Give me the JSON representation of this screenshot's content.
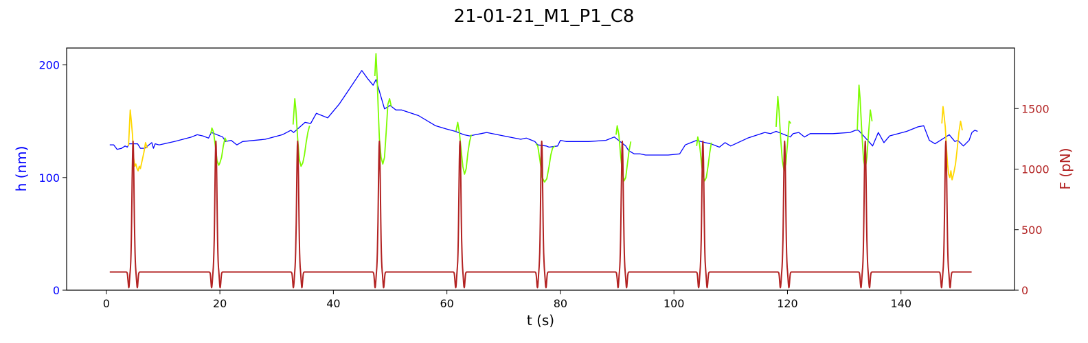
{
  "chart_data": {
    "type": "line",
    "title": "21-01-21_M1_P1_C8",
    "xlabel": "t (s)",
    "ylabel_left": "h (nm)",
    "ylabel_right": "F (pN)",
    "xlim": [
      -7,
      160
    ],
    "ylim_left": [
      0,
      215
    ],
    "ylim_right": [
      0,
      2000
    ],
    "x_ticks": [
      0,
      20,
      40,
      60,
      80,
      100,
      120,
      140
    ],
    "y_left_ticks": [
      0,
      100,
      200
    ],
    "y_right_ticks": [
      0,
      500,
      1000,
      1500
    ],
    "grid": false,
    "colors": {
      "h": "#0000ff",
      "compression_green": "#7cfc00",
      "compression_gold": "#ffd700",
      "force": "#b22222",
      "left_axis": "#0000ff",
      "right_axis": "#b22222"
    },
    "series": [
      {
        "axis": "left",
        "color": "#0000ff",
        "points": [
          [
            0.6,
            129
          ],
          [
            1.3,
            129
          ],
          [
            1.9,
            125
          ],
          [
            2.7,
            126
          ],
          [
            3.3,
            128
          ],
          [
            3.7,
            127
          ],
          [
            4.0,
            130
          ],
          [
            5.5,
            130
          ],
          [
            6.0,
            126
          ],
          [
            6.8,
            126
          ],
          [
            7.5,
            129
          ],
          [
            8.0,
            131
          ],
          [
            8.3,
            126
          ],
          [
            8.6,
            130
          ],
          [
            9.3,
            129
          ],
          [
            12,
            132
          ],
          [
            15,
            136
          ],
          [
            16,
            138
          ],
          [
            17,
            137
          ],
          [
            18,
            135
          ],
          [
            18.5,
            140
          ],
          [
            20.5,
            136
          ],
          [
            21,
            132
          ],
          [
            22,
            133
          ],
          [
            23,
            129
          ],
          [
            24,
            132
          ],
          [
            28,
            134
          ],
          [
            31,
            138
          ],
          [
            32.5,
            142
          ],
          [
            33,
            140
          ],
          [
            35,
            149
          ],
          [
            36,
            148
          ],
          [
            37,
            157
          ],
          [
            38,
            155
          ],
          [
            39,
            153
          ],
          [
            41,
            165
          ],
          [
            43,
            180
          ],
          [
            45,
            195
          ],
          [
            46,
            188
          ],
          [
            47,
            182
          ],
          [
            47.5,
            187
          ],
          [
            49,
            161
          ],
          [
            50,
            164
          ],
          [
            51,
            160
          ],
          [
            52,
            160
          ],
          [
            55,
            155
          ],
          [
            58,
            146
          ],
          [
            60,
            143
          ],
          [
            61.5,
            141
          ],
          [
            63,
            138
          ],
          [
            64,
            137
          ],
          [
            65,
            138
          ],
          [
            66,
            139
          ],
          [
            67,
            140
          ],
          [
            70,
            137
          ],
          [
            73,
            134
          ],
          [
            74,
            135
          ],
          [
            75,
            133
          ],
          [
            75.5,
            132
          ],
          [
            76,
            129
          ],
          [
            77.5,
            128
          ],
          [
            78,
            127
          ],
          [
            79.5,
            128
          ],
          [
            80,
            133
          ],
          [
            81,
            132
          ],
          [
            85,
            132
          ],
          [
            88,
            133
          ],
          [
            89,
            135
          ],
          [
            89.5,
            136
          ],
          [
            91.5,
            128
          ],
          [
            92,
            124
          ],
          [
            93,
            121
          ],
          [
            94,
            121
          ],
          [
            95,
            120
          ],
          [
            99,
            120
          ],
          [
            101,
            121
          ],
          [
            102,
            129
          ],
          [
            103,
            131
          ],
          [
            104,
            133
          ],
          [
            105.5,
            131
          ],
          [
            106.5,
            130
          ],
          [
            107,
            129
          ],
          [
            108,
            127
          ],
          [
            109,
            131
          ],
          [
            110,
            128
          ],
          [
            113,
            135
          ],
          [
            116,
            140
          ],
          [
            117,
            139
          ],
          [
            118,
            141
          ],
          [
            120.5,
            136
          ],
          [
            121,
            139
          ],
          [
            122,
            140
          ],
          [
            123,
            136
          ],
          [
            124,
            139
          ],
          [
            128,
            139
          ],
          [
            131,
            140
          ],
          [
            132,
            142
          ],
          [
            132.5,
            142
          ],
          [
            134.5,
            131
          ],
          [
            135,
            128
          ],
          [
            136,
            140
          ],
          [
            137,
            131
          ],
          [
            138,
            137
          ],
          [
            141,
            141
          ],
          [
            143,
            145
          ],
          [
            144,
            146
          ],
          [
            145,
            133
          ],
          [
            146,
            130
          ],
          [
            148.5,
            138
          ],
          [
            149.5,
            132
          ],
          [
            150,
            133
          ],
          [
            151,
            128
          ],
          [
            152,
            133
          ],
          [
            152.5,
            140
          ],
          [
            153,
            142
          ],
          [
            153.5,
            141
          ]
        ]
      },
      {
        "axis": "left",
        "color": "#ffd700",
        "points": [
          [
            3.9,
            128
          ],
          [
            4.2,
            160
          ],
          [
            4.4,
            150
          ],
          [
            4.6,
            138
          ],
          [
            4.8,
            118
          ],
          [
            5.0,
            110
          ],
          [
            5.2,
            112
          ],
          [
            5.4,
            108
          ],
          [
            5.6,
            106
          ],
          [
            5.8,
            110
          ],
          [
            6.0,
            108
          ],
          [
            6.3,
            115
          ],
          [
            6.6,
            122
          ],
          [
            6.9,
            131
          ],
          [
            7.2,
            126
          ]
        ]
      },
      {
        "axis": "left",
        "color": "#ffd700",
        "points": [
          [
            147.2,
            148
          ],
          [
            147.4,
            163
          ],
          [
            147.6,
            155
          ],
          [
            147.8,
            145
          ],
          [
            148.0,
            128
          ],
          [
            148.2,
            112
          ],
          [
            148.4,
            103
          ],
          [
            148.6,
            100
          ],
          [
            148.8,
            106
          ],
          [
            149.0,
            98
          ],
          [
            149.3,
            104
          ],
          [
            149.6,
            112
          ],
          [
            149.9,
            125
          ],
          [
            150.2,
            140
          ],
          [
            150.5,
            150
          ],
          [
            150.8,
            142
          ]
        ]
      },
      {
        "axis": "left",
        "color": "#7cfc00",
        "points": [
          [
            18.4,
            139
          ],
          [
            18.6,
            144
          ],
          [
            18.9,
            140
          ],
          [
            19.2,
            128
          ],
          [
            19.5,
            115
          ],
          [
            19.8,
            111
          ],
          [
            20.0,
            113
          ],
          [
            20.3,
            118
          ],
          [
            20.6,
            128
          ],
          [
            20.9,
            135
          ],
          [
            21.2,
            132
          ]
        ]
      },
      {
        "axis": "left",
        "color": "#7cfc00",
        "points": [
          [
            32.9,
            147
          ],
          [
            33.2,
            170
          ],
          [
            33.4,
            160
          ],
          [
            33.7,
            135
          ],
          [
            34.0,
            116
          ],
          [
            34.3,
            110
          ],
          [
            34.6,
            113
          ],
          [
            34.9,
            120
          ],
          [
            35.2,
            131
          ],
          [
            35.5,
            140
          ],
          [
            35.8,
            146
          ]
        ]
      },
      {
        "axis": "left",
        "color": "#7cfc00",
        "points": [
          [
            47.3,
            190
          ],
          [
            47.5,
            210
          ],
          [
            47.7,
            190
          ],
          [
            47.9,
            160
          ],
          [
            48.1,
            135
          ],
          [
            48.4,
            118
          ],
          [
            48.7,
            112
          ],
          [
            49.0,
            118
          ],
          [
            49.3,
            140
          ],
          [
            49.6,
            165
          ],
          [
            49.9,
            170
          ],
          [
            50.2,
            163
          ]
        ]
      },
      {
        "axis": "left",
        "color": "#7cfc00",
        "points": [
          [
            61.6,
            141
          ],
          [
            61.9,
            149
          ],
          [
            62.2,
            140
          ],
          [
            62.5,
            125
          ],
          [
            62.8,
            110
          ],
          [
            63.1,
            103
          ],
          [
            63.4,
            108
          ],
          [
            63.7,
            122
          ],
          [
            64.0,
            132
          ],
          [
            64.3,
            138
          ]
        ]
      },
      {
        "axis": "left",
        "color": "#7cfc00",
        "points": [
          [
            75.7,
            130
          ],
          [
            76.0,
            128
          ],
          [
            76.4,
            115
          ],
          [
            76.8,
            100
          ],
          [
            77.2,
            96
          ],
          [
            77.6,
            99
          ],
          [
            78.0,
            110
          ],
          [
            78.3,
            120
          ],
          [
            78.6,
            126
          ],
          [
            79.0,
            128
          ]
        ]
      },
      {
        "axis": "left",
        "color": "#7cfc00",
        "points": [
          [
            89.8,
            138
          ],
          [
            90.0,
            146
          ],
          [
            90.3,
            138
          ],
          [
            90.6,
            120
          ],
          [
            90.9,
            105
          ],
          [
            91.2,
            97
          ],
          [
            91.5,
            100
          ],
          [
            91.8,
            112
          ],
          [
            92.1,
            124
          ],
          [
            92.4,
            132
          ]
        ]
      },
      {
        "axis": "left",
        "color": "#7cfc00",
        "points": [
          [
            104.0,
            128
          ],
          [
            104.2,
            136
          ],
          [
            104.5,
            130
          ],
          [
            104.8,
            115
          ],
          [
            105.1,
            102
          ],
          [
            105.4,
            97
          ],
          [
            105.7,
            100
          ],
          [
            106.0,
            110
          ],
          [
            106.3,
            122
          ],
          [
            106.6,
            131
          ]
        ]
      },
      {
        "axis": "left",
        "color": "#7cfc00",
        "points": [
          [
            118.0,
            145
          ],
          [
            118.3,
            172
          ],
          [
            118.5,
            160
          ],
          [
            118.8,
            135
          ],
          [
            119.1,
            115
          ],
          [
            119.4,
            106
          ],
          [
            119.7,
            112
          ],
          [
            120.0,
            130
          ],
          [
            120.3,
            150
          ],
          [
            120.6,
            148
          ]
        ]
      },
      {
        "axis": "left",
        "color": "#7cfc00",
        "points": [
          [
            132.3,
            142
          ],
          [
            132.6,
            182
          ],
          [
            132.8,
            170
          ],
          [
            133.1,
            140
          ],
          [
            133.4,
            116
          ],
          [
            133.7,
            107
          ],
          [
            134.0,
            118
          ],
          [
            134.3,
            140
          ],
          [
            134.6,
            160
          ],
          [
            134.9,
            150
          ]
        ]
      },
      {
        "axis": "right",
        "color": "#b22222",
        "peaks": [
          4.7,
          19.3,
          33.7,
          48.1,
          62.3,
          76.7,
          90.9,
          105.1,
          119.5,
          133.7,
          147.9
        ],
        "baseline": 150,
        "peak_value": 1230,
        "dip_value": 20,
        "x_start": 0.6,
        "x_end": 152.5
      }
    ]
  }
}
